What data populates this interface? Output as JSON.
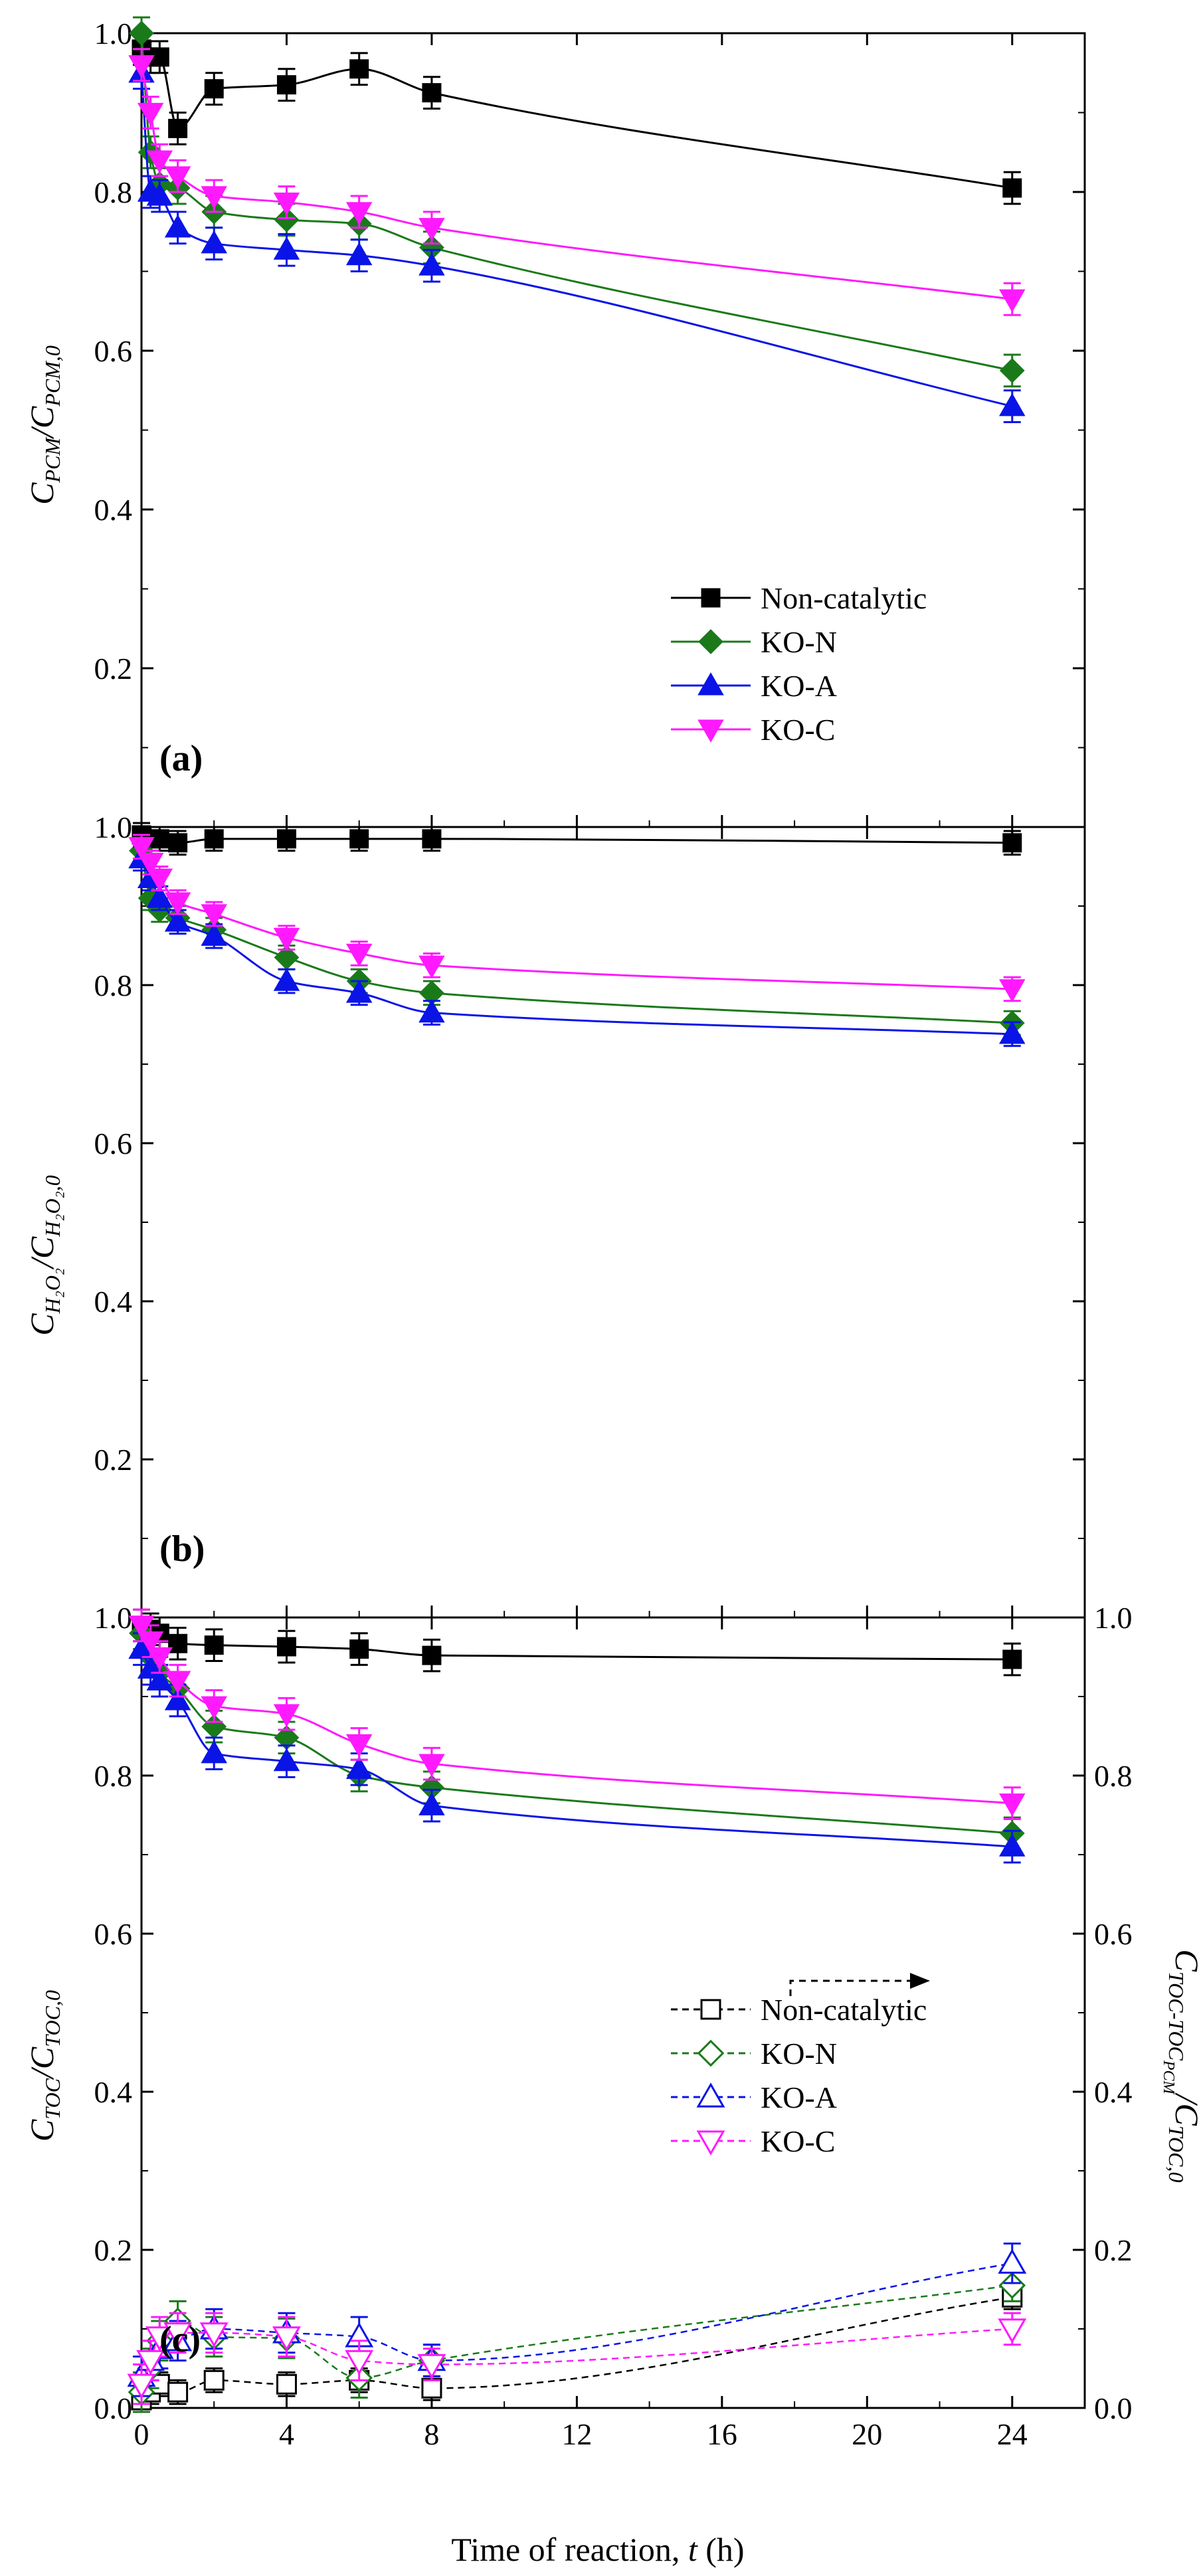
{
  "figure": {
    "xlabel_pre": "Time of reaction, ",
    "xlabel_var": "t",
    "xlabel_post": " (h)"
  },
  "chart_data": [
    {
      "type": "line",
      "panel_label": "(a)",
      "ylabel": "C_PCM/C_PCM,0",
      "ylim": [
        0.0,
        1.0
      ],
      "xlim": [
        0,
        26
      ],
      "xticks": [
        0,
        4,
        8,
        12,
        16,
        20,
        24
      ],
      "yticks": [
        0.0,
        0.2,
        0.4,
        0.6,
        0.8,
        1.0
      ],
      "ytick_labels": [
        "",
        "0.2",
        "0.4",
        "0.6",
        "0.8",
        "1.0"
      ],
      "legend": "center-right",
      "series": [
        {
          "name": "Non-catalytic",
          "color": "#000000",
          "marker": "square",
          "filled": true,
          "dashed": false,
          "x": [
            0,
            0.25,
            0.5,
            1,
            2,
            4,
            6,
            8,
            24
          ],
          "y": [
            0.98,
            0.97,
            0.97,
            0.88,
            0.93,
            0.935,
            0.955,
            0.925,
            0.805
          ],
          "err": [
            0.02,
            0.02,
            0.02,
            0.02,
            0.02,
            0.02,
            0.02,
            0.02,
            0.02
          ]
        },
        {
          "name": "KO-N",
          "color": "#1a7a1a",
          "marker": "diamond",
          "filled": true,
          "dashed": false,
          "x": [
            0,
            0.25,
            0.5,
            1,
            2,
            4,
            6,
            8,
            24
          ],
          "y": [
            1.0,
            0.85,
            0.81,
            0.805,
            0.775,
            0.765,
            0.76,
            0.73,
            0.575
          ],
          "err": [
            0.02,
            0.02,
            0.02,
            0.02,
            0.02,
            0.02,
            0.02,
            0.02,
            0.02
          ]
        },
        {
          "name": "KO-A",
          "color": "#0a14e6",
          "marker": "triangle-up",
          "filled": true,
          "dashed": false,
          "x": [
            0,
            0.25,
            0.5,
            1,
            2,
            4,
            6,
            8,
            24
          ],
          "y": [
            0.95,
            0.8,
            0.795,
            0.755,
            0.735,
            0.727,
            0.72,
            0.707,
            0.53
          ],
          "err": [
            0.02,
            0.02,
            0.02,
            0.02,
            0.02,
            0.02,
            0.02,
            0.02,
            0.02
          ]
        },
        {
          "name": "KO-C",
          "color": "#ff19ff",
          "marker": "triangle-down",
          "filled": true,
          "dashed": false,
          "x": [
            0,
            0.25,
            0.5,
            1,
            2,
            4,
            6,
            8,
            24
          ],
          "y": [
            0.96,
            0.9,
            0.84,
            0.82,
            0.795,
            0.787,
            0.775,
            0.755,
            0.665
          ],
          "err": [
            0.02,
            0.02,
            0.02,
            0.02,
            0.02,
            0.02,
            0.02,
            0.02,
            0.02
          ]
        }
      ]
    },
    {
      "type": "line",
      "panel_label": "(b)",
      "ylabel": "C_H2O2/C_H2O2,0",
      "ylim": [
        0.0,
        1.0
      ],
      "xlim": [
        0,
        26
      ],
      "xticks": [
        0,
        4,
        8,
        12,
        16,
        20,
        24
      ],
      "yticks": [
        0.0,
        0.2,
        0.4,
        0.6,
        0.8,
        1.0
      ],
      "ytick_labels": [
        "",
        "0.2",
        "0.4",
        "0.6",
        "0.8",
        "1.0"
      ],
      "series": [
        {
          "name": "Non-catalytic",
          "color": "#000000",
          "marker": "square",
          "filled": true,
          "dashed": false,
          "x": [
            0,
            0.25,
            0.5,
            1,
            2,
            4,
            6,
            8,
            24
          ],
          "y": [
            0.99,
            0.985,
            0.985,
            0.98,
            0.985,
            0.985,
            0.985,
            0.985,
            0.98
          ],
          "err": [
            0.015,
            0.015,
            0.015,
            0.015,
            0.015,
            0.015,
            0.015,
            0.015,
            0.015
          ]
        },
        {
          "name": "KO-N",
          "color": "#1a7a1a",
          "marker": "diamond",
          "filled": true,
          "dashed": false,
          "x": [
            0,
            0.25,
            0.5,
            1,
            2,
            4,
            6,
            8,
            24
          ],
          "y": [
            0.97,
            0.91,
            0.895,
            0.885,
            0.87,
            0.835,
            0.805,
            0.79,
            0.752
          ],
          "err": [
            0.015,
            0.015,
            0.015,
            0.015,
            0.015,
            0.015,
            0.015,
            0.015,
            0.015
          ]
        },
        {
          "name": "KO-A",
          "color": "#0a14e6",
          "marker": "triangle-up",
          "filled": true,
          "dashed": false,
          "x": [
            0,
            0.25,
            0.5,
            1,
            2,
            4,
            6,
            8,
            24
          ],
          "y": [
            0.96,
            0.935,
            0.91,
            0.88,
            0.862,
            0.805,
            0.79,
            0.765,
            0.738
          ],
          "err": [
            0.015,
            0.015,
            0.015,
            0.015,
            0.015,
            0.015,
            0.015,
            0.015,
            0.015
          ]
        },
        {
          "name": "KO-C",
          "color": "#ff19ff",
          "marker": "triangle-down",
          "filled": true,
          "dashed": false,
          "x": [
            0,
            0.25,
            0.5,
            1,
            2,
            4,
            6,
            8,
            24
          ],
          "y": [
            0.975,
            0.955,
            0.935,
            0.905,
            0.89,
            0.86,
            0.84,
            0.825,
            0.795
          ],
          "err": [
            0.015,
            0.015,
            0.015,
            0.015,
            0.015,
            0.015,
            0.015,
            0.015,
            0.015
          ]
        }
      ]
    },
    {
      "type": "line",
      "panel_label": "(c)",
      "ylabel": "C_TOC/C_TOC,0",
      "ylabel_right": "C_TOC-TOC_PCM/C_TOC,0",
      "ylim": [
        0.0,
        1.0
      ],
      "xlim": [
        0,
        26
      ],
      "xticks": [
        0,
        4,
        8,
        12,
        16,
        20,
        24
      ],
      "xtick_labels": [
        "0",
        "4",
        "8",
        "12",
        "16",
        "20",
        "24"
      ],
      "yticks": [
        0.0,
        0.2,
        0.4,
        0.6,
        0.8,
        1.0
      ],
      "ytick_labels": [
        "0.0",
        "0.2",
        "0.4",
        "0.6",
        "0.8",
        "1.0"
      ],
      "legend": "center-right",
      "series": [
        {
          "name": "Non-catalytic",
          "axis": "left",
          "color": "#000000",
          "marker": "square",
          "filled": true,
          "dashed": false,
          "x": [
            0,
            0.25,
            0.5,
            1,
            2,
            4,
            6,
            8,
            24
          ],
          "y": [
            0.99,
            0.985,
            0.98,
            0.967,
            0.965,
            0.963,
            0.96,
            0.952,
            0.947
          ],
          "err": [
            0.02,
            0.02,
            0.02,
            0.02,
            0.02,
            0.02,
            0.02,
            0.02,
            0.02
          ]
        },
        {
          "name": "KO-N",
          "axis": "left",
          "color": "#1a7a1a",
          "marker": "diamond",
          "filled": true,
          "dashed": false,
          "x": [
            0,
            0.25,
            0.5,
            1,
            2,
            4,
            6,
            8,
            24
          ],
          "y": [
            0.98,
            0.95,
            0.93,
            0.91,
            0.862,
            0.848,
            0.8,
            0.785,
            0.727
          ],
          "err": [
            0.02,
            0.02,
            0.02,
            0.02,
            0.02,
            0.02,
            0.02,
            0.02,
            0.02
          ]
        },
        {
          "name": "KO-A",
          "axis": "left",
          "color": "#0a14e6",
          "marker": "triangle-up",
          "filled": true,
          "dashed": false,
          "x": [
            0,
            0.25,
            0.5,
            1,
            2,
            4,
            6,
            8,
            24
          ],
          "y": [
            0.96,
            0.935,
            0.92,
            0.895,
            0.828,
            0.818,
            0.808,
            0.762,
            0.71
          ],
          "err": [
            0.02,
            0.02,
            0.02,
            0.02,
            0.02,
            0.02,
            0.02,
            0.02,
            0.02
          ]
        },
        {
          "name": "KO-C",
          "axis": "left",
          "color": "#ff19ff",
          "marker": "triangle-down",
          "filled": true,
          "dashed": false,
          "x": [
            0,
            0.25,
            0.5,
            1,
            2,
            4,
            6,
            8,
            24
          ],
          "y": [
            0.99,
            0.97,
            0.95,
            0.92,
            0.888,
            0.878,
            0.84,
            0.815,
            0.765
          ],
          "err": [
            0.02,
            0.02,
            0.02,
            0.02,
            0.02,
            0.02,
            0.02,
            0.02,
            0.02
          ]
        },
        {
          "name": "Non-catalytic",
          "axis": "right",
          "color": "#000000",
          "marker": "square",
          "filled": false,
          "dashed": true,
          "x": [
            0,
            0.25,
            0.5,
            1,
            2,
            4,
            6,
            8,
            24
          ],
          "y": [
            0.01,
            0.02,
            0.03,
            0.02,
            0.035,
            0.03,
            0.035,
            0.025,
            0.14
          ],
          "err": [
            0.015,
            0.015,
            0.015,
            0.015,
            0.015,
            0.015,
            0.015,
            0.015,
            0.015
          ]
        },
        {
          "name": "KO-N",
          "axis": "right",
          "color": "#1a7a1a",
          "marker": "diamond",
          "filled": false,
          "dashed": true,
          "x": [
            0,
            0.25,
            0.5,
            1,
            2,
            4,
            6,
            8,
            24
          ],
          "y": [
            0.02,
            0.05,
            0.085,
            0.11,
            0.09,
            0.088,
            0.038,
            0.06,
            0.155
          ],
          "err": [
            0.025,
            0.025,
            0.025,
            0.025,
            0.025,
            0.025,
            0.025,
            0.02,
            0.02
          ]
        },
        {
          "name": "KO-A",
          "axis": "right",
          "color": "#0a14e6",
          "marker": "triangle-up",
          "filled": false,
          "dashed": true,
          "x": [
            0,
            0.25,
            0.5,
            1,
            2,
            4,
            6,
            8,
            24
          ],
          "y": [
            0.04,
            0.06,
            0.075,
            0.085,
            0.1,
            0.095,
            0.09,
            0.06,
            0.183
          ],
          "err": [
            0.025,
            0.025,
            0.025,
            0.025,
            0.025,
            0.025,
            0.025,
            0.02,
            0.025
          ]
        },
        {
          "name": "KO-C",
          "axis": "right",
          "color": "#ff19ff",
          "marker": "triangle-down",
          "filled": false,
          "dashed": true,
          "x": [
            0,
            0.25,
            0.5,
            1,
            2,
            4,
            6,
            8,
            24
          ],
          "y": [
            0.03,
            0.06,
            0.09,
            0.095,
            0.095,
            0.09,
            0.06,
            0.055,
            0.1
          ],
          "err": [
            0.025,
            0.025,
            0.025,
            0.025,
            0.025,
            0.025,
            0.025,
            0.02,
            0.02
          ]
        }
      ]
    }
  ]
}
